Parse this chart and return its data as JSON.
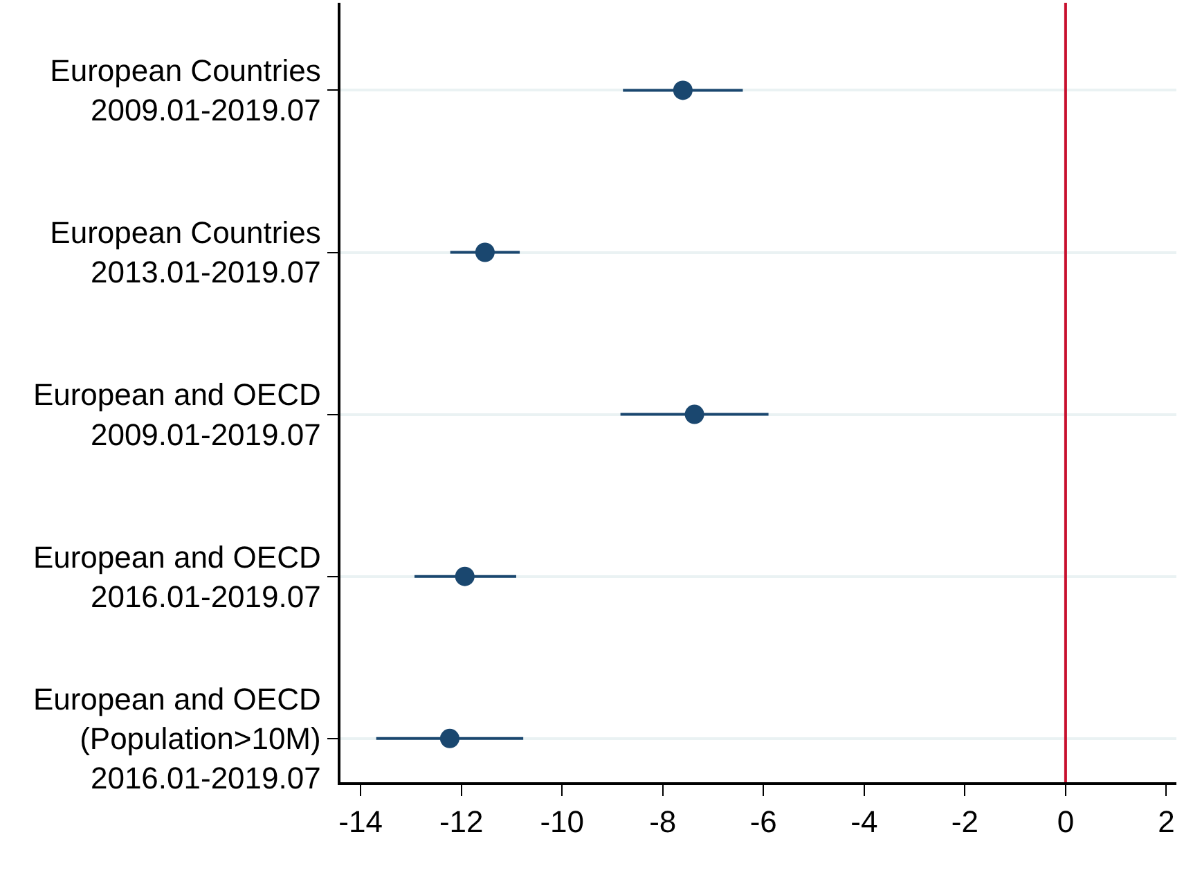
{
  "chart_data": {
    "type": "scatter",
    "orientation": "horizontal",
    "categories": [
      "European Countries\n2009.01-2019.07",
      "European Countries\n2013.01-2019.07",
      "European and OECD\n2009.01-2019.07",
      "European and OECD\n2016.01-2019.07",
      "European and OECD\n(Population>10M)\n2016.01-2019.07"
    ],
    "series": [
      {
        "color": "#1a476f",
        "values": [
          -7.6,
          -11.53,
          -7.37,
          -11.93,
          -12.23
        ],
        "errors": [
          [
            -8.79,
            -6.41
          ],
          [
            -12.22,
            -10.84
          ],
          [
            -8.84,
            -5.9
          ],
          [
            -12.93,
            -10.91
          ],
          [
            -13.69,
            -10.77
          ]
        ]
      }
    ],
    "xlim": [
      -14.4,
      2.2
    ],
    "xticks": [
      -14,
      -12,
      -10,
      -8,
      -6,
      -4,
      -2,
      0,
      2
    ],
    "ref_lines": [
      {
        "axis": "x",
        "value": 0,
        "color": "#c8102e"
      }
    ],
    "grid": "y",
    "marker": "circle"
  }
}
